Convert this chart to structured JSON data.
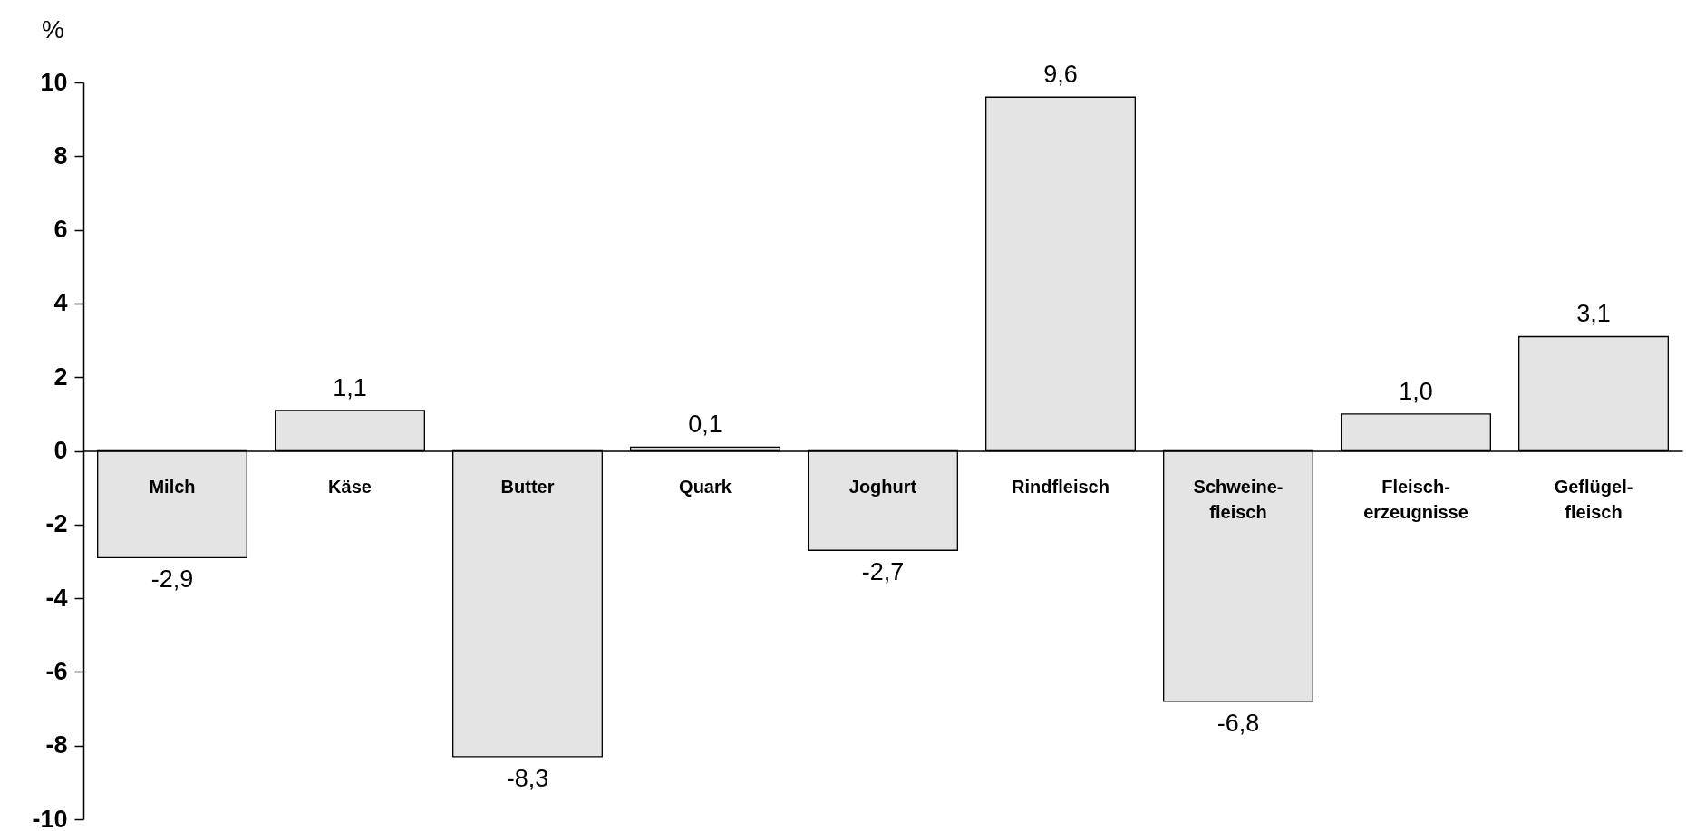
{
  "chart_data": {
    "type": "bar",
    "ylabel": "%",
    "categories": [
      "Milch",
      "Käse",
      "Butter",
      "Quark",
      "Joghurt",
      "Rindfleisch",
      "Schweine-\nfleisch",
      "Fleisch-\nerzeugnisse",
      "Geflügel-\nfleisch"
    ],
    "values": [
      -2.9,
      1.1,
      -8.3,
      0.1,
      -2.7,
      9.6,
      -6.8,
      1.0,
      3.1
    ],
    "value_labels": [
      "-2,9",
      "1,1",
      "-8,3",
      "0,1",
      "-2,7",
      "9,6",
      "-6,8",
      "1,0",
      "3,1"
    ],
    "color": "#e4e4e4",
    "ylim": [
      -10,
      10
    ],
    "yticks": [
      -10,
      -8,
      -6,
      -4,
      -2,
      0,
      2,
      4,
      6,
      8,
      10
    ],
    "grid": false
  }
}
